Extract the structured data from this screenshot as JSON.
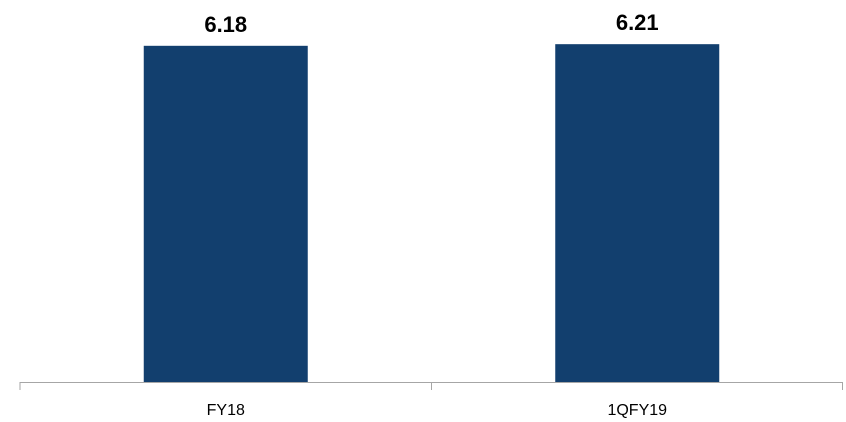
{
  "chart_data": {
    "type": "bar",
    "categories": [
      "FY18",
      "1QFY19"
    ],
    "values": [
      6.18,
      6.21
    ],
    "data_labels": [
      "6.18",
      "6.21"
    ],
    "title": "",
    "xlabel": "",
    "ylabel": "",
    "grid": false,
    "legend": "none",
    "bar_color": "#123f6e",
    "axis_color": "#a6a6a6"
  }
}
